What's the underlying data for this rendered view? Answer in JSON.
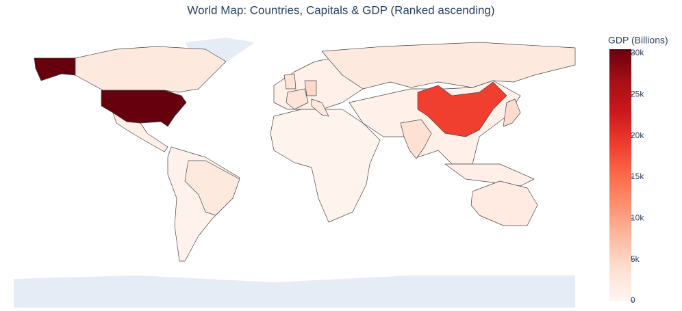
{
  "chart_data": {
    "type": "choropleth",
    "title": "World Map: Countries, Capitals & GDP (Ranked ascending)",
    "colorbar_title": "GDP (Billions)",
    "values": [
      30500,
      18700,
      2100,
      4200,
      3700,
      4500,
      3300,
      3100,
      2300,
      2200,
      2100,
      1800
    ],
    "zlim": [
      0,
      30500
    ],
    "zticks": [
      0,
      {
        "value": 5000,
        "label": "5k"
      },
      {
        "value": 10000,
        "label": "10k"
      },
      {
        "value": 15000,
        "label": "15k"
      },
      {
        "value": 20000,
        "label": "20k"
      },
      {
        "value": 25000,
        "label": "25k"
      },
      {
        "value": 30000,
        "label": "30k"
      }
    ],
    "colorscale": [
      "#fff5f0",
      "#fee0d2",
      "#fcbba1",
      "#fc9272",
      "#fb6a4a",
      "#ef3b2c",
      "#cb181d",
      "#a50f15",
      "#67000d"
    ]
  }
}
